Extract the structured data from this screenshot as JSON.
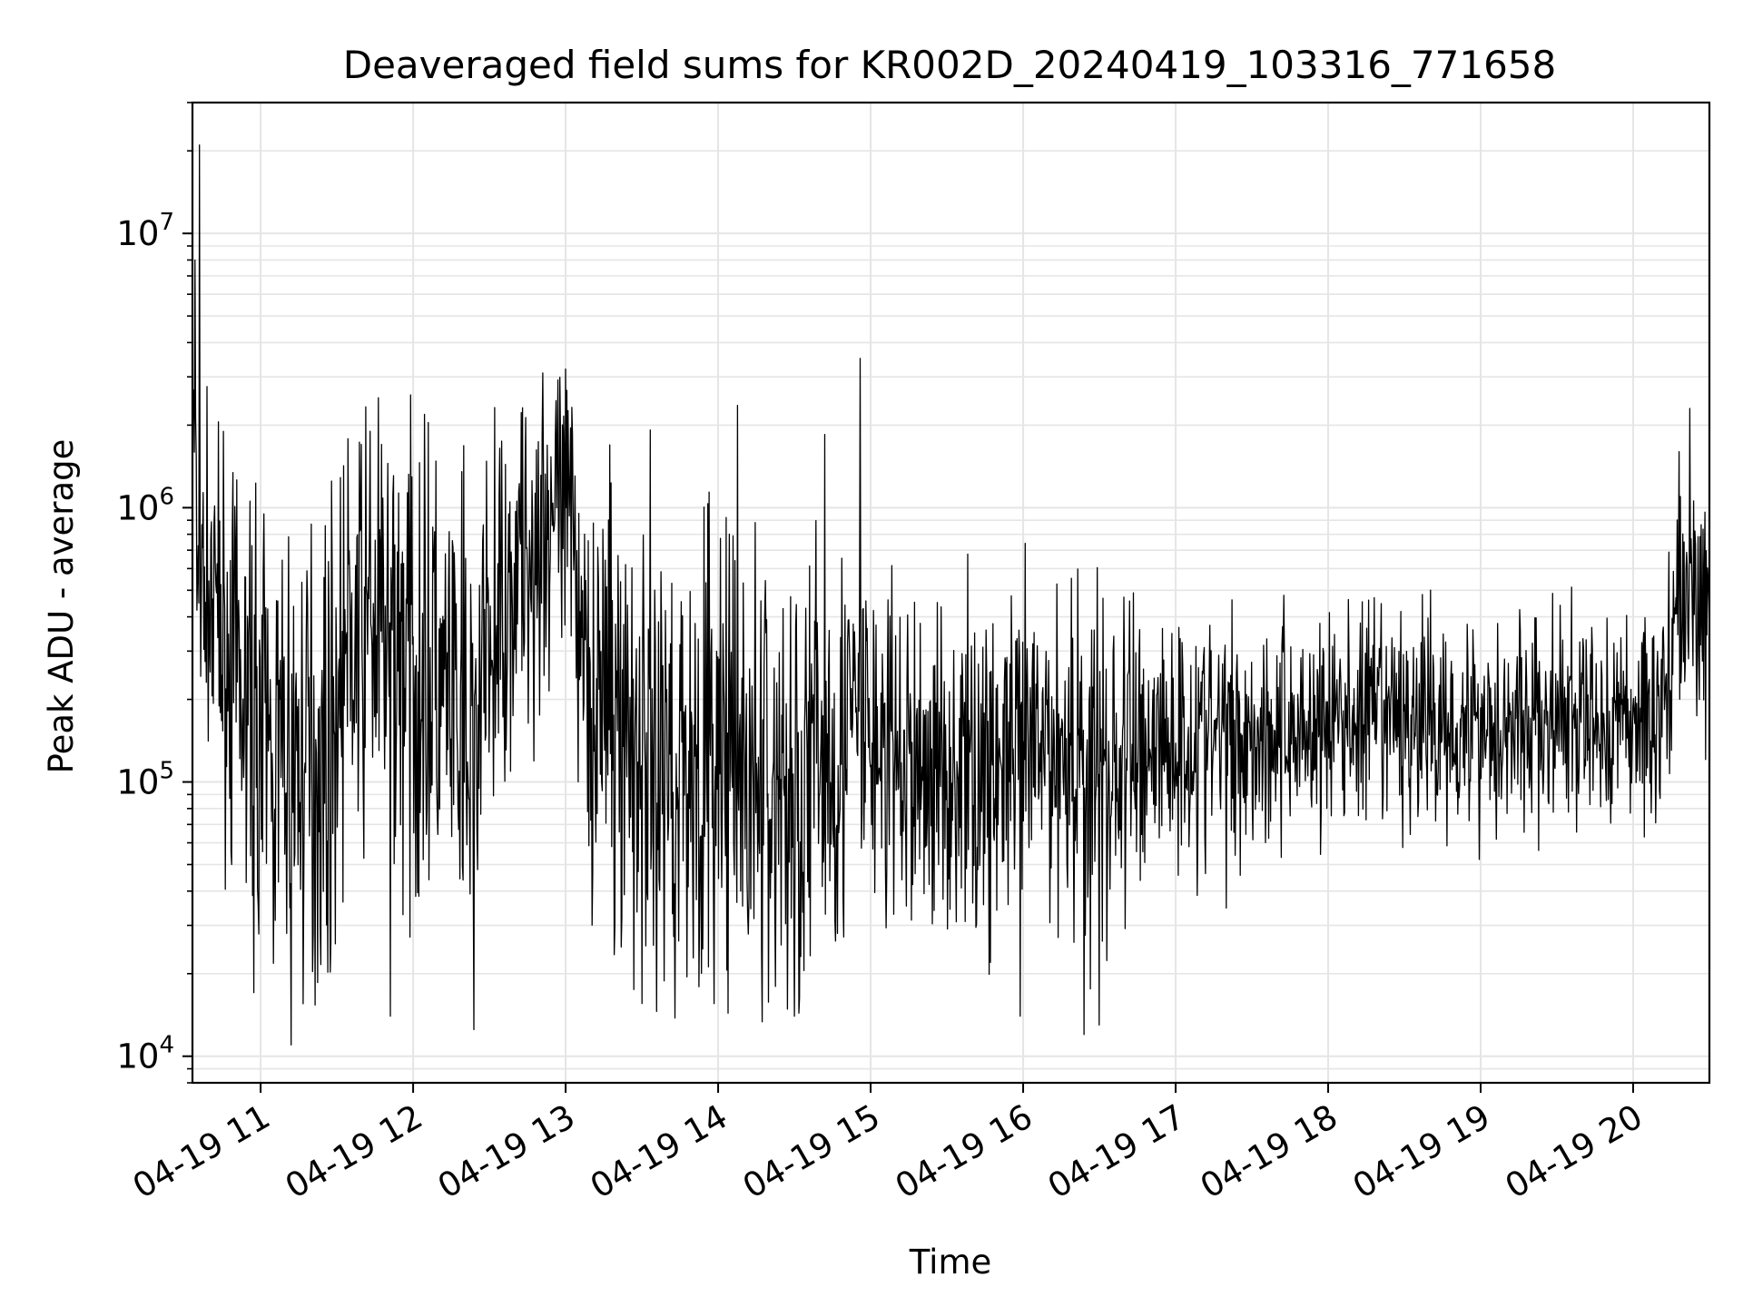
{
  "chart_data": {
    "type": "line",
    "title": "Deaveraged field sums for KR002D_20240419_103316_771658",
    "xlabel": "Time",
    "ylabel": "Peak ADU - average",
    "yscale": "log",
    "ylim": [
      8000,
      30000000
    ],
    "xlim_hours": [
      10.553,
      20.5
    ],
    "grid": true,
    "line_color": "#000000",
    "grid_color": "#e5e5e5",
    "x_ticks": [
      {
        "hour": 11,
        "label": "04-19 11"
      },
      {
        "hour": 12,
        "label": "04-19 12"
      },
      {
        "hour": 13,
        "label": "04-19 13"
      },
      {
        "hour": 14,
        "label": "04-19 14"
      },
      {
        "hour": 15,
        "label": "04-19 15"
      },
      {
        "hour": 16,
        "label": "04-19 16"
      },
      {
        "hour": 17,
        "label": "04-19 17"
      },
      {
        "hour": 18,
        "label": "04-19 18"
      },
      {
        "hour": 19,
        "label": "04-19 19"
      },
      {
        "hour": 20,
        "label": "04-19 20"
      }
    ],
    "y_ticks": [
      {
        "value": 10000,
        "base": "10",
        "exp": "4"
      },
      {
        "value": 100000,
        "base": "10",
        "exp": "5"
      },
      {
        "value": 1000000,
        "base": "10",
        "exp": "6"
      },
      {
        "value": 10000000,
        "base": "10",
        "exp": "7"
      }
    ],
    "series_profile": [
      {
        "t": 10.553,
        "median": 5000000,
        "spread": 0.25
      },
      {
        "t": 10.58,
        "median": 600000,
        "spread": 0.25
      },
      {
        "t": 10.7,
        "median": 400000,
        "spread": 0.3
      },
      {
        "t": 10.9,
        "median": 180000,
        "spread": 0.35
      },
      {
        "t": 11.2,
        "median": 110000,
        "spread": 0.4
      },
      {
        "t": 11.45,
        "median": 130000,
        "spread": 0.4
      },
      {
        "t": 11.55,
        "median": 300000,
        "spread": 0.35
      },
      {
        "t": 11.8,
        "median": 350000,
        "spread": 0.4
      },
      {
        "t": 12.1,
        "median": 250000,
        "spread": 0.45
      },
      {
        "t": 12.35,
        "median": 110000,
        "spread": 0.45
      },
      {
        "t": 12.6,
        "median": 500000,
        "spread": 0.3
      },
      {
        "t": 12.9,
        "median": 900000,
        "spread": 0.3
      },
      {
        "t": 13.05,
        "median": 700000,
        "spread": 0.35
      },
      {
        "t": 13.2,
        "median": 200000,
        "spread": 0.45
      },
      {
        "t": 13.6,
        "median": 120000,
        "spread": 0.45
      },
      {
        "t": 14.0,
        "median": 110000,
        "spread": 0.45
      },
      {
        "t": 14.5,
        "median": 90000,
        "spread": 0.45
      },
      {
        "t": 14.9,
        "median": 160000,
        "spread": 0.35
      },
      {
        "t": 15.2,
        "median": 110000,
        "spread": 0.3
      },
      {
        "t": 15.8,
        "median": 110000,
        "spread": 0.3
      },
      {
        "t": 16.3,
        "median": 140000,
        "spread": 0.3
      },
      {
        "t": 16.5,
        "median": 100000,
        "spread": 0.4
      },
      {
        "t": 16.8,
        "median": 140000,
        "spread": 0.25
      },
      {
        "t": 17.5,
        "median": 150000,
        "spread": 0.22
      },
      {
        "t": 18.2,
        "median": 170000,
        "spread": 0.2
      },
      {
        "t": 19.0,
        "median": 165000,
        "spread": 0.2
      },
      {
        "t": 19.8,
        "median": 160000,
        "spread": 0.2
      },
      {
        "t": 20.2,
        "median": 180000,
        "spread": 0.2
      },
      {
        "t": 20.27,
        "median": 450000,
        "spread": 0.22
      },
      {
        "t": 20.5,
        "median": 420000,
        "spread": 0.2
      }
    ],
    "notable_peaks": [
      {
        "t": 10.6,
        "value": 21000000
      },
      {
        "t": 10.57,
        "value": 8000000
      },
      {
        "t": 12.85,
        "value": 3100000
      },
      {
        "t": 13.0,
        "value": 3200000
      },
      {
        "t": 14.93,
        "value": 3500000
      },
      {
        "t": 20.37,
        "value": 2300000
      },
      {
        "t": 20.3,
        "value": 1600000
      },
      {
        "t": 11.72,
        "value": 1900000
      },
      {
        "t": 14.7,
        "value": 1850000
      }
    ],
    "notable_dips": [
      {
        "t": 11.2,
        "value": 11000
      },
      {
        "t": 12.4,
        "value": 12500
      },
      {
        "t": 16.4,
        "value": 12000
      },
      {
        "t": 16.5,
        "value": 13000
      },
      {
        "t": 14.5,
        "value": 14000
      },
      {
        "t": 15.98,
        "value": 14000
      },
      {
        "t": 11.85,
        "value": 14000
      }
    ]
  }
}
